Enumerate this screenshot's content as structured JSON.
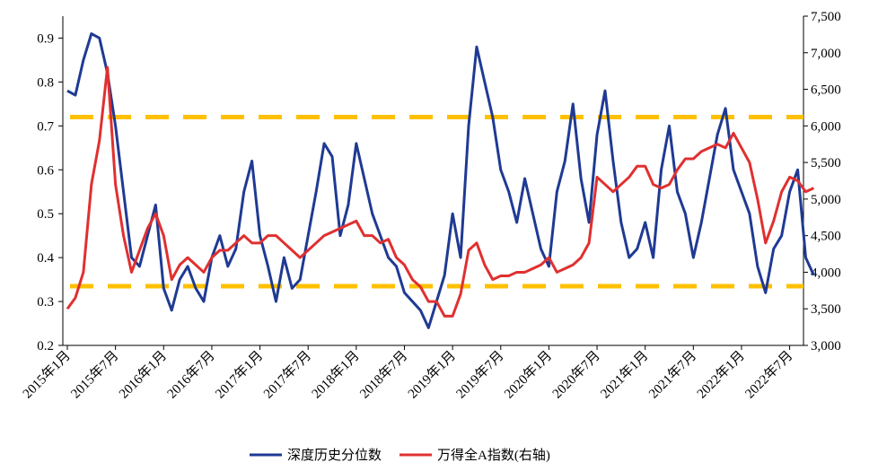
{
  "chart_data": {
    "type": "line",
    "categories": [
      "2015年1月",
      null,
      null,
      null,
      null,
      null,
      "2015年7月",
      null,
      null,
      null,
      null,
      null,
      "2016年1月",
      null,
      null,
      null,
      null,
      null,
      "2016年7月",
      null,
      null,
      null,
      null,
      null,
      "2017年1月",
      null,
      null,
      null,
      null,
      null,
      "2017年7月",
      null,
      null,
      null,
      null,
      null,
      "2018年1月",
      null,
      null,
      null,
      null,
      null,
      "2018年7月",
      null,
      null,
      null,
      null,
      null,
      "2019年1月",
      null,
      null,
      null,
      null,
      null,
      "2019年7月",
      null,
      null,
      null,
      null,
      null,
      "2020年1月",
      null,
      null,
      null,
      null,
      null,
      "2020年7月",
      null,
      null,
      null,
      null,
      null,
      "2021年1月",
      null,
      null,
      null,
      null,
      null,
      "2021年7月",
      null,
      null,
      null,
      null,
      null,
      "2022年1月",
      null,
      null,
      null,
      null,
      null,
      "2022年7月",
      null,
      null,
      null
    ],
    "series": [
      {
        "name": "深度历史分位数",
        "color": "#1f3a93",
        "values": [
          0.78,
          0.77,
          0.85,
          0.91,
          0.9,
          0.82,
          0.7,
          0.55,
          0.4,
          0.38,
          0.45,
          0.52,
          0.33,
          0.28,
          0.35,
          0.38,
          0.33,
          0.3,
          0.4,
          0.45,
          0.38,
          0.42,
          0.55,
          0.62,
          0.45,
          0.38,
          0.3,
          0.4,
          0.33,
          0.35,
          0.45,
          0.55,
          0.66,
          0.63,
          0.45,
          0.52,
          0.66,
          0.58,
          0.5,
          0.45,
          0.4,
          0.38,
          0.32,
          0.3,
          0.28,
          0.24,
          0.3,
          0.36,
          0.5,
          0.4,
          0.7,
          0.88,
          0.8,
          0.72,
          0.6,
          0.55,
          0.48,
          0.58,
          0.5,
          0.42,
          0.38,
          0.55,
          0.62,
          0.75,
          0.58,
          0.48,
          0.68,
          0.78,
          0.62,
          0.48,
          0.4,
          0.42,
          0.48,
          0.4,
          0.6,
          0.7,
          0.55,
          0.5,
          0.4,
          0.48,
          0.58,
          0.68,
          0.74,
          0.6,
          0.55,
          0.5,
          0.38,
          0.32,
          0.42,
          0.45,
          0.55,
          0.6,
          0.4,
          0.36
        ]
      },
      {
        "name": "万得全A指数(右轴)",
        "color": "#e03030",
        "axis": "y2",
        "values": [
          3500,
          3650,
          4000,
          5200,
          5800,
          6800,
          5200,
          4500,
          4000,
          4300,
          4600,
          4800,
          4500,
          3900,
          4100,
          4200,
          4100,
          4000,
          4200,
          4300,
          4300,
          4400,
          4500,
          4400,
          4400,
          4500,
          4500,
          4400,
          4300,
          4200,
          4300,
          4400,
          4500,
          4550,
          4600,
          4650,
          4700,
          4500,
          4500,
          4400,
          4450,
          4200,
          4100,
          3900,
          3800,
          3600,
          3600,
          3400,
          3400,
          3700,
          4300,
          4400,
          4100,
          3900,
          3950,
          3950,
          4000,
          4000,
          4050,
          4100,
          4200,
          4000,
          4050,
          4100,
          4200,
          4400,
          5300,
          5200,
          5100,
          5200,
          5300,
          5450,
          5450,
          5200,
          5150,
          5200,
          5400,
          5550,
          5550,
          5650,
          5700,
          5750,
          5700,
          5900,
          5700,
          5500,
          5000,
          4400,
          4700,
          5100,
          5300,
          5250,
          5100,
          5150
        ]
      }
    ],
    "reference_lines": [
      {
        "value": 0.72,
        "color": "#ffc000"
      },
      {
        "value": 0.335,
        "color": "#ffc000"
      }
    ],
    "ylim": [
      0.2,
      0.95
    ],
    "yticks": [
      0.2,
      0.3,
      0.4,
      0.5,
      0.6,
      0.7,
      0.8,
      0.9
    ],
    "y2lim": [
      3000,
      7500
    ],
    "y2ticks": [
      {
        "value": 3000,
        "label": "3,000"
      },
      {
        "value": 3500,
        "label": "3,500"
      },
      {
        "value": 4000,
        "label": "4,000"
      },
      {
        "value": 4500,
        "label": "4,500"
      },
      {
        "value": 5000,
        "label": "5,000"
      },
      {
        "value": 5500,
        "label": "5,500"
      },
      {
        "value": 6000,
        "label": "6,000"
      },
      {
        "value": 6500,
        "label": "6,500"
      },
      {
        "value": 7000,
        "label": "7,000"
      },
      {
        "value": 7500,
        "label": "7,500"
      }
    ],
    "legend": "bottom"
  }
}
